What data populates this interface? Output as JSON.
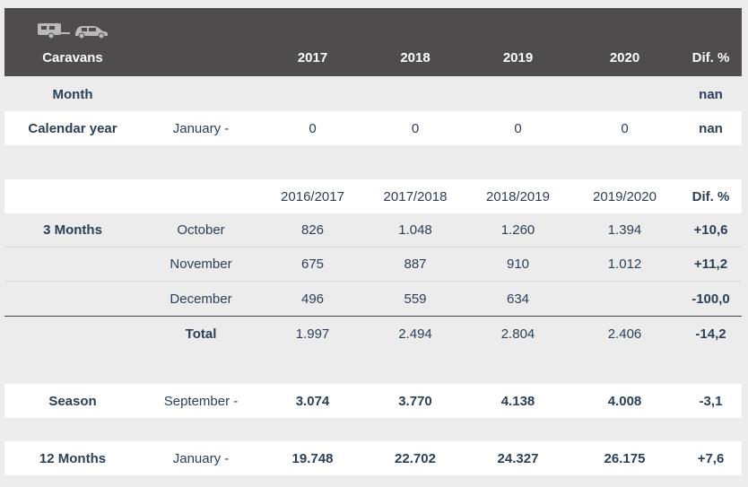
{
  "header": {
    "title": "Caravans",
    "icon": "caravan-car-icon",
    "columns": [
      "2017",
      "2018",
      "2019",
      "2020",
      "Dif. %"
    ]
  },
  "month_row": {
    "label": "Month",
    "dif": "nan"
  },
  "calendar_row": {
    "label": "Calendar year",
    "period": "January -",
    "values": [
      "0",
      "0",
      "0",
      "0"
    ],
    "dif": "nan"
  },
  "three_months": {
    "columns": [
      "2016/2017",
      "2017/2018",
      "2018/2019",
      "2019/2020",
      "Dif. %"
    ],
    "label": "3 Months",
    "rows": [
      {
        "period": "October",
        "values": [
          "826",
          "1.048",
          "1.260",
          "1.394"
        ],
        "dif": "+10,6"
      },
      {
        "period": "November",
        "values": [
          "675",
          "887",
          "910",
          "1.012"
        ],
        "dif": "+11,2"
      },
      {
        "period": "December",
        "values": [
          "496",
          "559",
          "634",
          ""
        ],
        "dif": "-100,0"
      }
    ],
    "total": {
      "label": "Total",
      "values": [
        "1.997",
        "2.494",
        "2.804",
        "2.406"
      ],
      "dif": "-14,2"
    }
  },
  "season": {
    "label": "Season",
    "period": "September -",
    "values": [
      "3.074",
      "3.770",
      "4.138",
      "4.008"
    ],
    "dif": "-3,1"
  },
  "twelve_months": {
    "label": "12 Months",
    "period": "January -",
    "values": [
      "19.748",
      "22.702",
      "24.327",
      "26.175"
    ],
    "dif": "+7,6"
  }
}
